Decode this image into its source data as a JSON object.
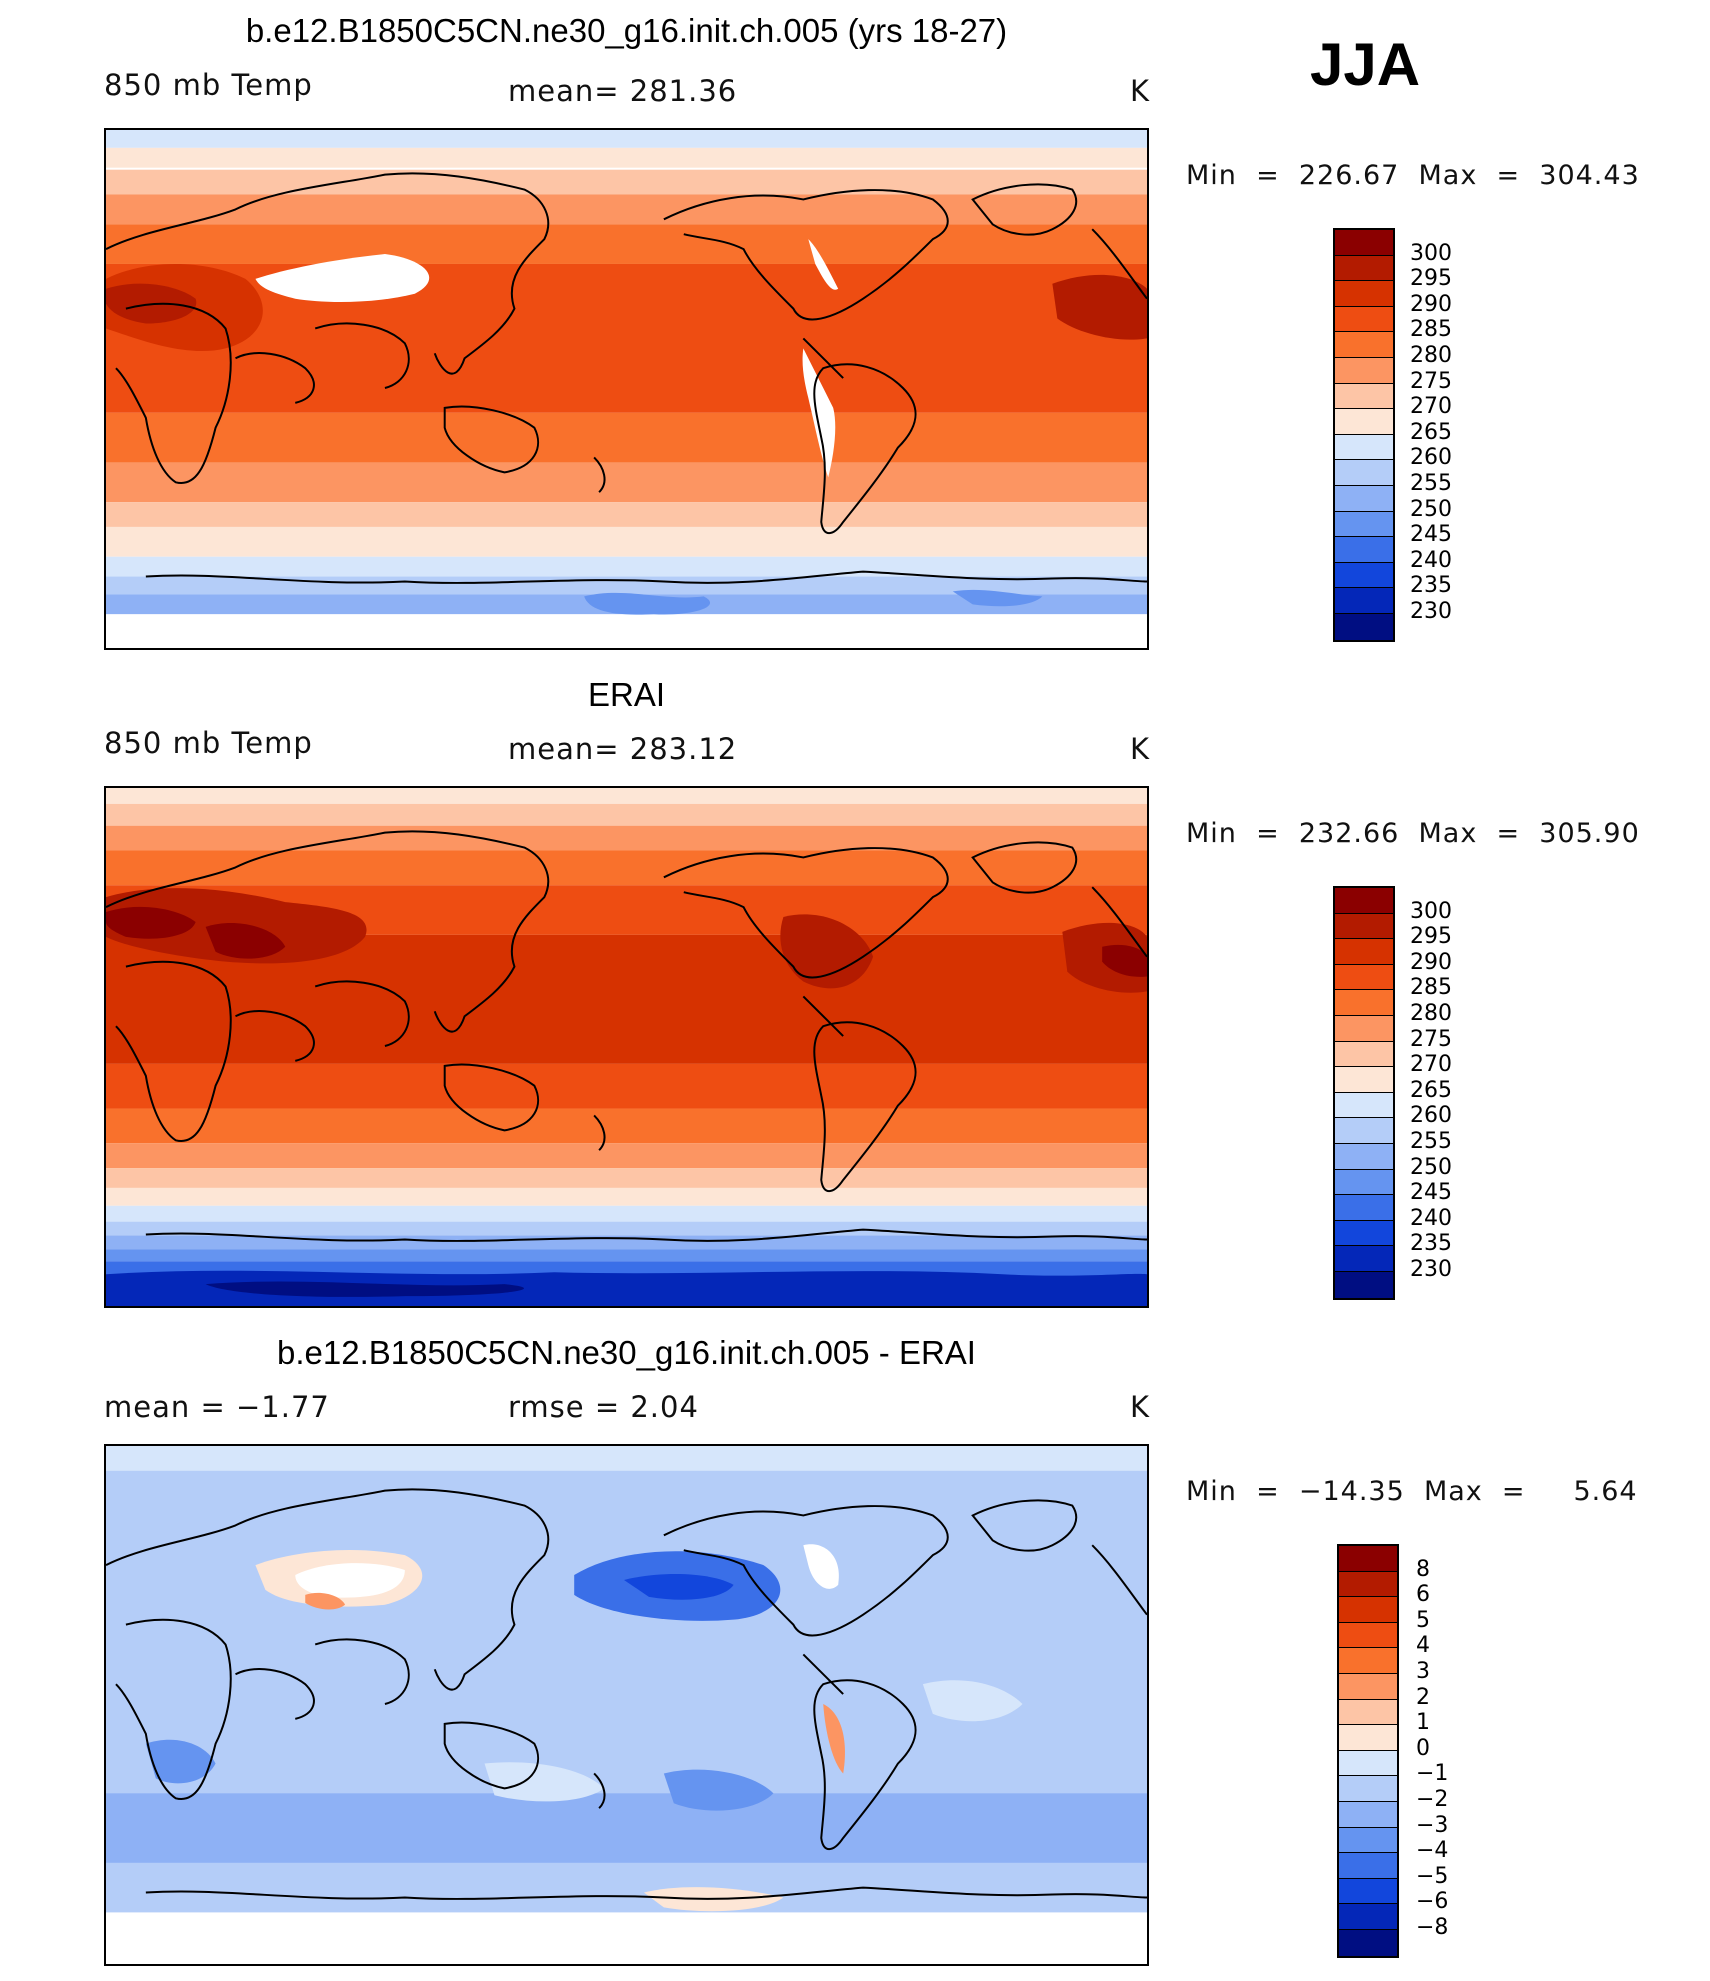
{
  "season": "JJA",
  "panels": [
    {
      "title": "b.e12.B1850C5CN.ne30_g16.init.ch.005 (yrs 18-27)",
      "left_label": "850 mb Temp",
      "center_label": "mean=  281.36",
      "units": "K",
      "minmax": "Min  =  226.67  Max  =  304.43",
      "map_kind": "model"
    },
    {
      "title": "ERAI",
      "left_label": "850 mb Temp",
      "center_label": "mean=  283.12",
      "units": "K",
      "minmax": "Min  =  232.66  Max  =  305.90",
      "map_kind": "obs"
    },
    {
      "title": "b.e12.B1850C5CN.ne30_g16.init.ch.005 - ERAI",
      "left_label": "mean  =    −1.77",
      "center_label": "rmse  =     2.04",
      "units": "K",
      "minmax": "Min  =  −14.35  Max  =     5.64",
      "map_kind": "diff"
    }
  ],
  "temp_colorbar": {
    "labels": [
      "300",
      "295",
      "290",
      "285",
      "280",
      "275",
      "270",
      "265",
      "260",
      "255",
      "250",
      "245",
      "240",
      "235",
      "230"
    ],
    "colors": [
      "#8b0000",
      "#b31b00",
      "#d63200",
      "#ee4d12",
      "#f9712c",
      "#fc9562",
      "#fdc5a6",
      "#fde6d6",
      "#d6e6fb",
      "#b4cdf8",
      "#8eb1f5",
      "#6594f0",
      "#3a6fe8",
      "#1246dc",
      "#0427b8",
      "#000e82"
    ]
  },
  "diff_colorbar": {
    "labels": [
      "8",
      "6",
      "5",
      "4",
      "3",
      "2",
      "1",
      "0",
      "−1",
      "−2",
      "−3",
      "−4",
      "−5",
      "−6",
      "−8"
    ],
    "colors": [
      "#8b0000",
      "#b31b00",
      "#d63200",
      "#ee4d12",
      "#f9712c",
      "#fc9562",
      "#fdc5a6",
      "#fde6d6",
      "#d6e6fb",
      "#b4cdf8",
      "#8eb1f5",
      "#6594f0",
      "#3a6fe8",
      "#1246dc",
      "#0427b8",
      "#000e82"
    ]
  }
}
